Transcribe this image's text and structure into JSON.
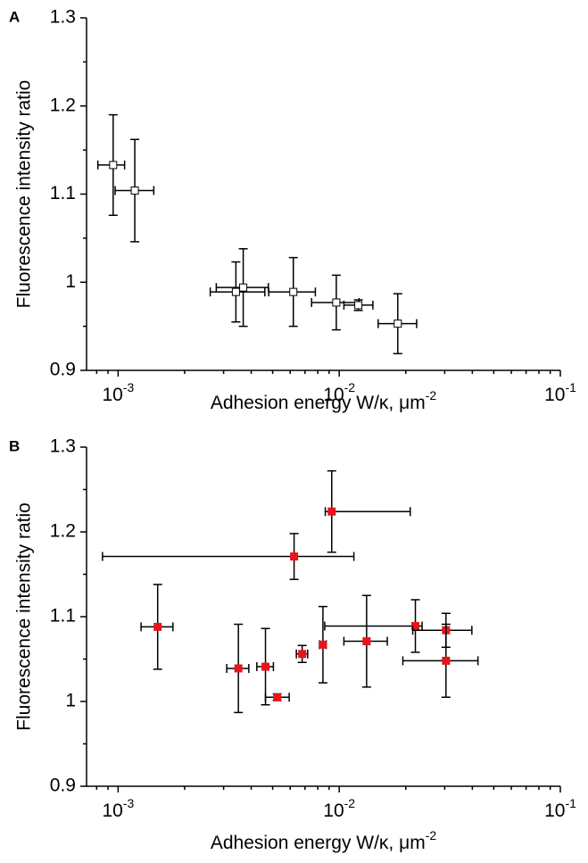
{
  "chart_data": [
    {
      "type": "scatter",
      "panel": "A",
      "xlabel": "Adhesion energy  W/κ, μm",
      "xlabel_sup": "-2",
      "ylabel": "Fluorescence intensity ratio",
      "log_x": true,
      "xlim": [
        0.00072,
        0.1
      ],
      "ylim": [
        0.9,
        1.3
      ],
      "xticks": [
        {
          "value": 0.001,
          "label": "10",
          "sup": "-3"
        },
        {
          "value": 0.01,
          "label": "10",
          "sup": "-2"
        },
        {
          "value": 0.1,
          "label": "10",
          "sup": "-1"
        }
      ],
      "yticks": [
        0.9,
        1.0,
        1.1,
        1.2,
        1.3
      ],
      "series": [
        {
          "color": "#ffffff",
          "x": [
            0.00095,
            0.00119,
            0.00341,
            0.00368,
            0.0062,
            0.0097,
            0.0122,
            0.0184
          ],
          "values": [
            1.133,
            1.104,
            0.989,
            0.994,
            0.989,
            0.977,
            0.974,
            0.953
          ],
          "yerr": [
            0.057,
            0.058,
            0.034,
            0.044,
            0.039,
            0.031,
            0.006,
            0.034
          ],
          "xerr": [
            [
              0.00014,
              0.00012
            ],
            [
              0.00022,
              0.00026
            ],
            [
              0.0008,
              0.0012
            ],
            [
              0.0009,
              0.0011
            ],
            [
              0.0014,
              0.0016
            ],
            [
              0.0022,
              0.0026
            ],
            [
              0.0017,
              0.002
            ],
            [
              0.0034,
              0.004
            ]
          ]
        }
      ]
    },
    {
      "type": "scatter",
      "panel": "B",
      "xlabel": "Adhesion energy  W/κ, μm",
      "xlabel_sup": "-2",
      "ylabel": "Fluorescence intensity ratio",
      "log_x": true,
      "xlim": [
        0.00072,
        0.1
      ],
      "ylim": [
        0.9,
        1.3
      ],
      "xticks": [
        {
          "value": 0.001,
          "label": "10",
          "sup": "-3"
        },
        {
          "value": 0.01,
          "label": "10",
          "sup": "-2"
        },
        {
          "value": 0.1,
          "label": "10",
          "sup": "-1"
        }
      ],
      "yticks": [
        0.9,
        1.0,
        1.1,
        1.2,
        1.3
      ],
      "series": [
        {
          "color": "#e8141b",
          "x": [
            0.00151,
            0.0035,
            0.00464,
            0.00524,
            0.0068,
            0.00625,
            0.00925,
            0.00844,
            0.0133,
            0.0221,
            0.0304,
            0.0304
          ],
          "values": [
            1.088,
            1.039,
            1.041,
            1.005,
            1.056,
            1.171,
            1.224,
            1.067,
            1.071,
            1.089,
            1.084,
            1.048
          ],
          "yerr": [
            0.05,
            0.052,
            0.045,
            0.004,
            0.01,
            0.027,
            0.048,
            0.045,
            0.054,
            0.031,
            0.02,
            0.043
          ],
          "xerr": [
            [
              0.00024,
              0.00026
            ],
            [
              0.0004,
              0.0004
            ],
            [
              0.0004,
              0.0004
            ],
            [
              0.0006,
              0.0007
            ],
            [
              0.0004,
              0.0004
            ],
            [
              0.0054,
              0.0054
            ],
            [
              0.0006,
              0.0117
            ],
            [
              0.0003,
              0.0003
            ],
            [
              0.0028,
              0.0032
            ],
            [
              0.0135,
              0.0016
            ],
            [
              0.0089,
              0.0094
            ],
            [
              0.011,
              0.012
            ]
          ]
        }
      ]
    }
  ]
}
